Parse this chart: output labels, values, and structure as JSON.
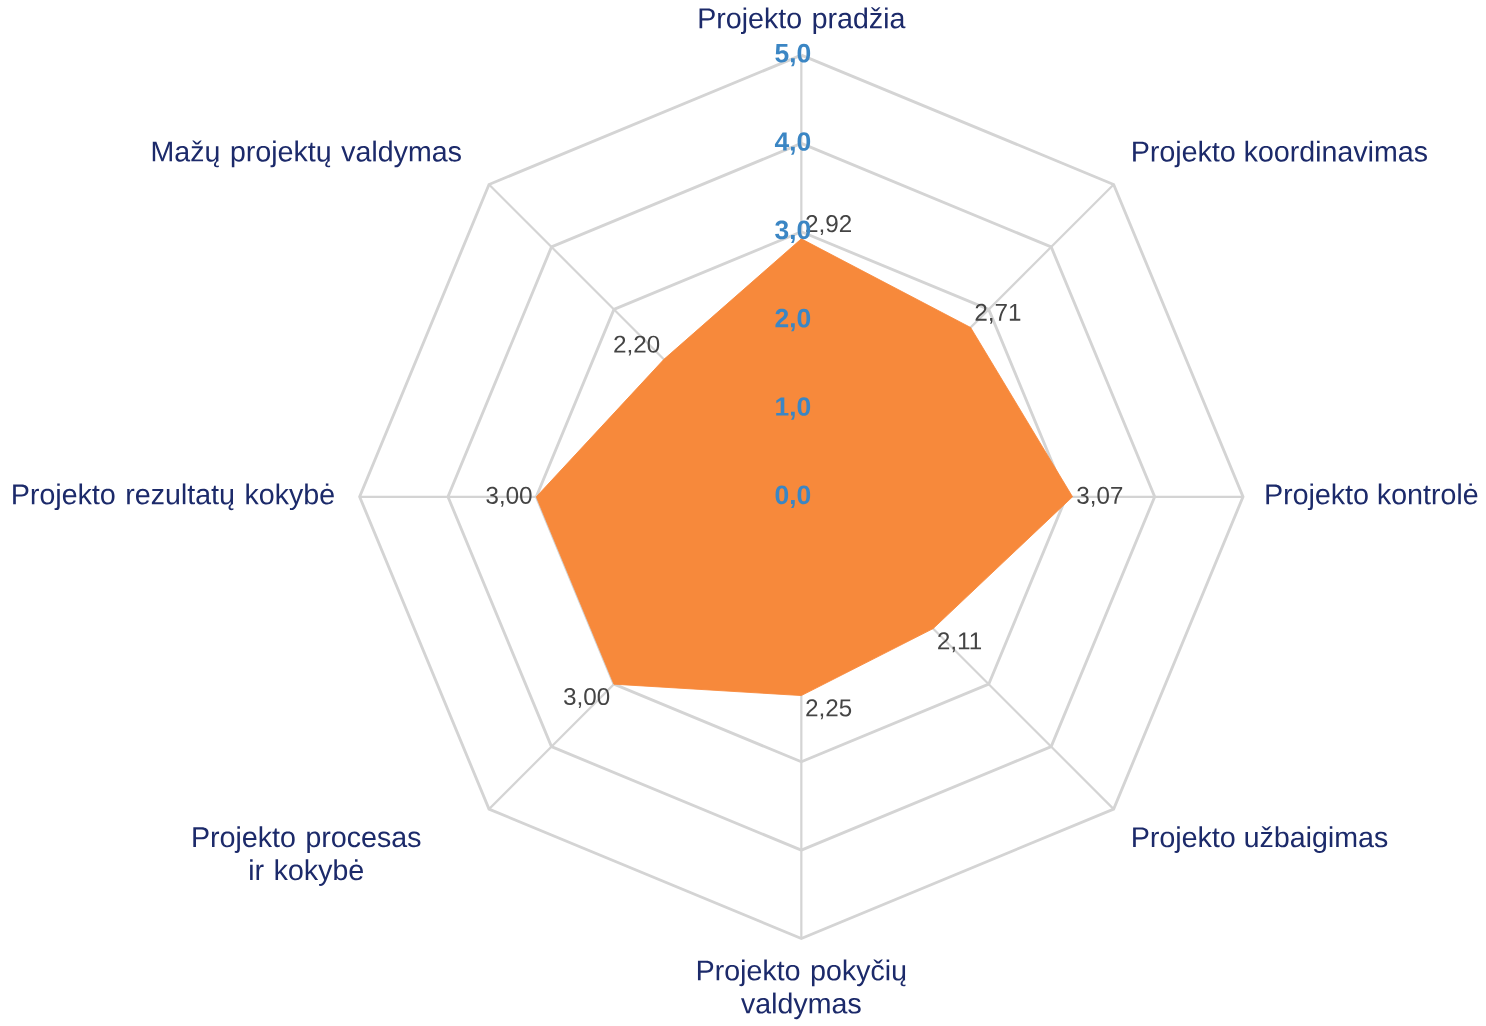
{
  "chart_data": {
    "type": "radar",
    "categories": [
      "Projekto pradžia",
      "Projekto koordinavimas",
      "Projekto kontrolė",
      "Projekto užbaigimas",
      "Projekto pokyčių valdymas",
      "Projekto procesas ir kokybė",
      "Projekto rezultatų kokybė",
      "Mažų projektų valdymas"
    ],
    "series": [
      {
        "color": "#f7893b",
        "values": [
          2.92,
          2.71,
          3.07,
          2.11,
          2.25,
          3.0,
          3.0,
          2.2
        ],
        "value_labels": [
          "2,92",
          "2,71",
          "3,07",
          "2,11",
          "2,25",
          "3,00",
          "3,00",
          "2,20"
        ]
      }
    ],
    "ylim": [
      0,
      5
    ],
    "yticks": [
      {
        "value": 0,
        "label": "0,0"
      },
      {
        "value": 1,
        "label": "1,0"
      },
      {
        "value": 2,
        "label": "2,0"
      },
      {
        "value": 3,
        "label": "3,0"
      },
      {
        "value": 4,
        "label": "4,0"
      },
      {
        "value": 5,
        "label": "5,0"
      }
    ],
    "grid": true
  }
}
